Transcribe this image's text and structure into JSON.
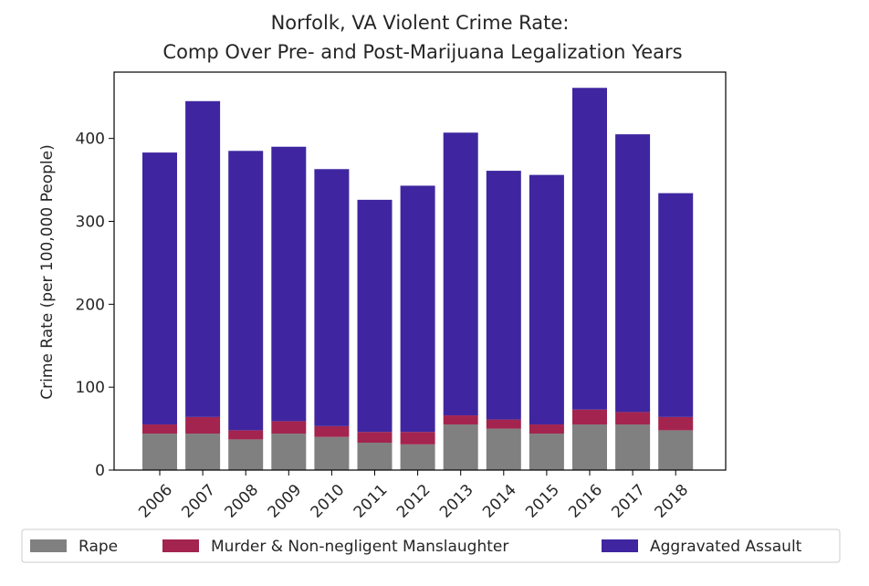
{
  "chart_data": {
    "type": "bar",
    "stacked": true,
    "title": "Norfolk, VA Violent Crime Rate:",
    "subtitle": "Comp Over Pre- and Post-Marijuana Legalization Years",
    "xlabel": "",
    "ylabel": "Crime Rate (per 100,000 People)",
    "ylim": [
      0,
      480
    ],
    "yticks": [
      "0",
      "100",
      "200",
      "300",
      "400"
    ],
    "ytick_values": [
      0,
      100,
      200,
      300,
      400
    ],
    "categories": [
      "2006",
      "2007",
      "2008",
      "2009",
      "2010",
      "2011",
      "2012",
      "2013",
      "2014",
      "2015",
      "2016",
      "2017",
      "2018"
    ],
    "series": [
      {
        "name": "Rape",
        "color": "#808080",
        "values": [
          44,
          44,
          37,
          44,
          40,
          33,
          31,
          55,
          50,
          44,
          55,
          55,
          48
        ]
      },
      {
        "name": "Murder & Non-negligent Manslaughter",
        "color": "#a3244f",
        "values": [
          11,
          20,
          11,
          15,
          13,
          13,
          15,
          11,
          11,
          11,
          18,
          15,
          16
        ]
      },
      {
        "name": "Aggravated Assault",
        "color": "#3f26a0",
        "values": [
          328,
          381,
          337,
          331,
          310,
          280,
          297,
          341,
          300,
          301,
          388,
          335,
          270
        ]
      }
    ],
    "grid": false,
    "legend_position": "bottom"
  }
}
